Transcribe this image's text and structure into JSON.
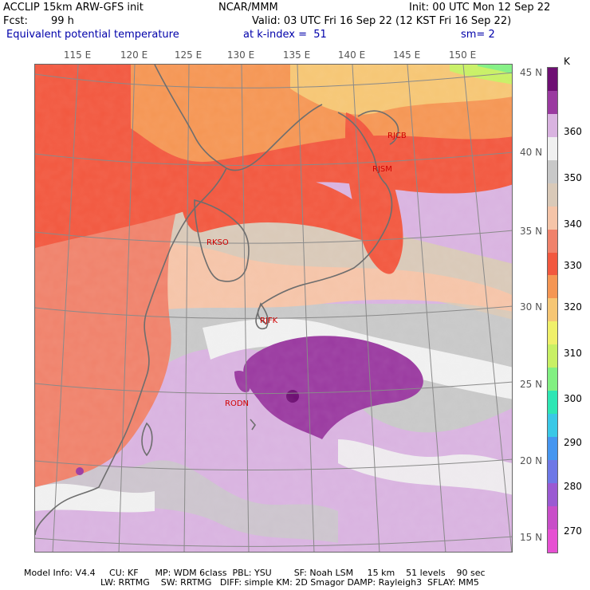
{
  "header": {
    "model_line": "ACCLIP 15km ARW-GFS init",
    "org": "NCAR/MMM",
    "init_line": "Init: 00 UTC Mon 12 Sep 22",
    "fcst_label": "Fcst:",
    "fcst_value": "99 h",
    "valid_line": "Valid: 03 UTC Fri 16 Sep 22 (12 KST Fri 16 Sep 22)",
    "field_name": "Equivalent potential temperature",
    "level_line": "at k-index =  51",
    "smooth_line": "sm= 2"
  },
  "lon_labels": [
    "115 E",
    "120 E",
    "125 E",
    "130 E",
    "135 E",
    "140 E",
    "145 E",
    "150 E"
  ],
  "lat_labels": [
    "45 N",
    "40 N",
    "35 N",
    "30 N",
    "25 N",
    "20 N",
    "15 N"
  ],
  "colorbar": {
    "unit": "K",
    "tick_labels": [
      "360",
      "350",
      "340",
      "330",
      "320",
      "310",
      "300",
      "290",
      "280",
      "270"
    ],
    "colors": [
      "#6e0f73",
      "#9a3aa0",
      "#d9b3e0",
      "#f0f0f0",
      "#c8c8c8",
      "#d9c9b8",
      "#f5c4a8",
      "#f0826b",
      "#f2583f",
      "#f59654",
      "#f6c674",
      "#f0f06a",
      "#c8f064",
      "#82f082",
      "#2ee6b4",
      "#3ac8e6",
      "#4696f0",
      "#6e78e6",
      "#9a5ad2",
      "#c84ec8",
      "#e650d2"
    ]
  },
  "stations": [
    "RJCB",
    "RJSM",
    "RKSO",
    "RJFK",
    "RODN"
  ],
  "footer": {
    "line1": "Model Info: V4.4     CU: KF      MP: WDM 6class  PBL: YSU        SF: Noah LSM     15 km    51 levels    90 sec",
    "line2": "LW: RRTMG    SW: RRTMG   DIFF: simple KM: 2D Smagor DAMP: Rayleigh3  SFLAY: MM5"
  }
}
